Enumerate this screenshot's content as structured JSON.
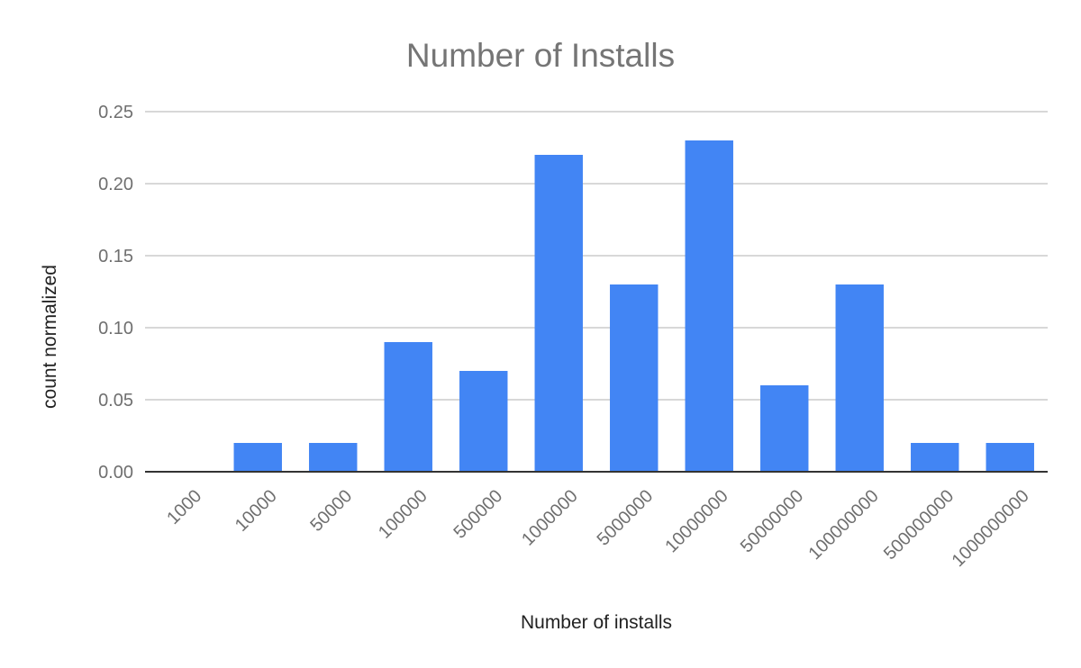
{
  "chart_data": {
    "type": "bar",
    "title": "Number of Installs",
    "xlabel": "Number of installs",
    "ylabel": "count normalized",
    "categories": [
      "1000",
      "10000",
      "50000",
      "100000",
      "500000",
      "1000000",
      "5000000",
      "10000000",
      "50000000",
      "100000000",
      "500000000",
      "1000000000"
    ],
    "series": [
      {
        "values": [
          0.0,
          0.02,
          0.02,
          0.09,
          0.07,
          0.22,
          0.13,
          0.23,
          0.06,
          0.13,
          0.02,
          0.02
        ],
        "color": "#4285f4"
      }
    ],
    "yticks": [
      "0.00",
      "0.05",
      "0.10",
      "0.15",
      "0.20",
      "0.25"
    ],
    "ylim": [
      0,
      0.25
    ],
    "grid": true,
    "legend": "none"
  }
}
